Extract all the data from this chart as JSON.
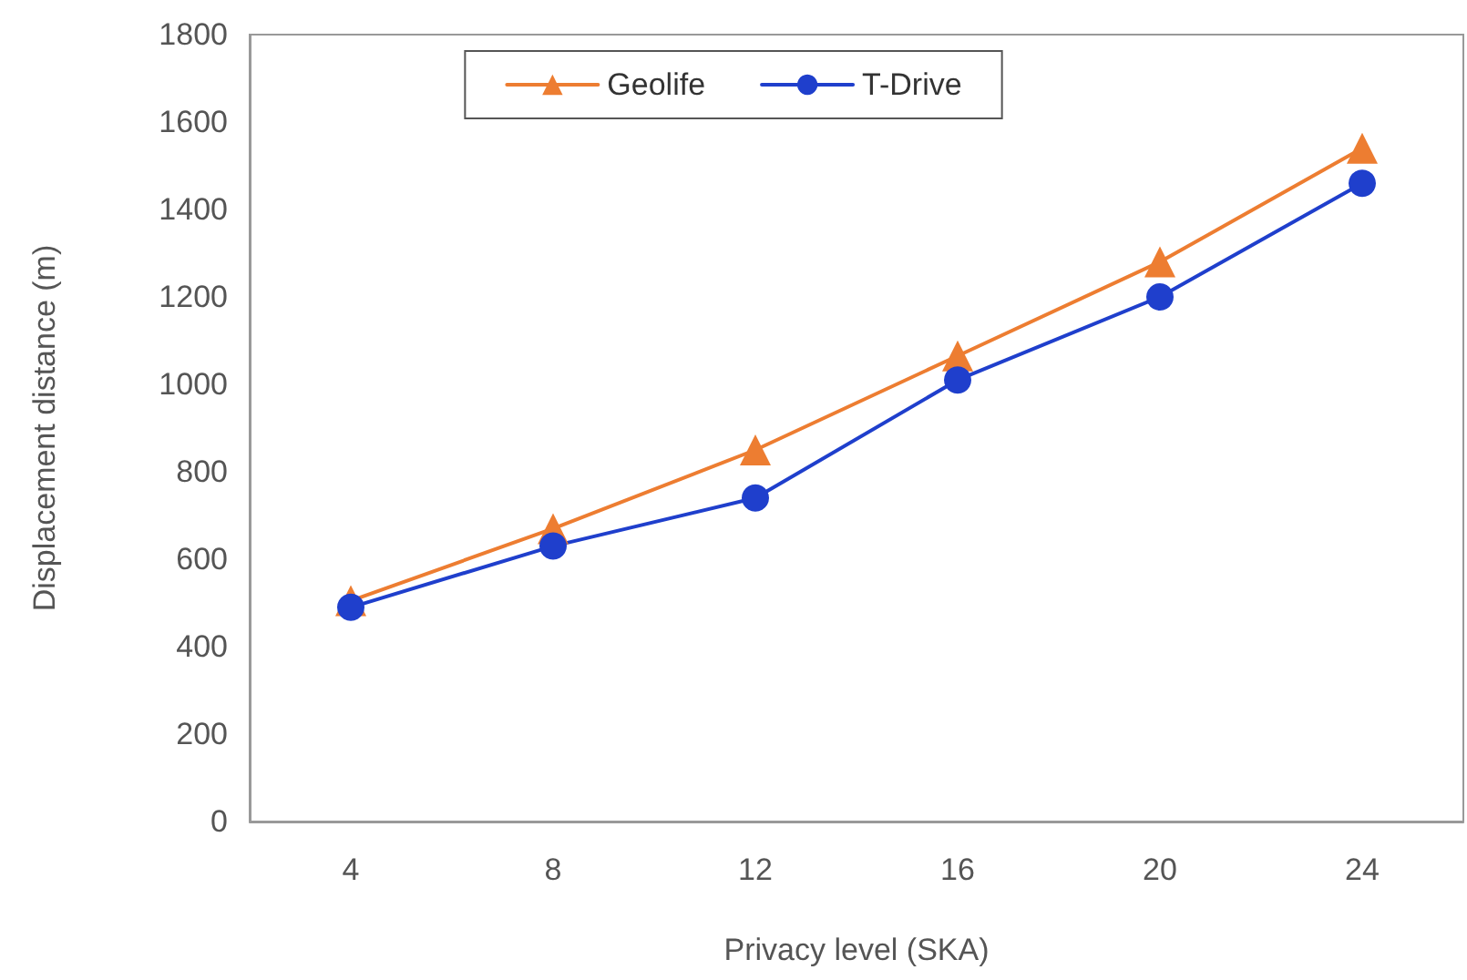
{
  "chart_data": {
    "type": "line",
    "xlabel": "Privacy level (SKA)",
    "ylabel": "Displacement distance (m)",
    "categories": [
      "4",
      "8",
      "12",
      "16",
      "20",
      "24"
    ],
    "series": [
      {
        "name": "Geolife",
        "color": "#ed7d31",
        "marker": "triangle",
        "values": [
          505,
          670,
          850,
          1065,
          1280,
          1540
        ]
      },
      {
        "name": "T-Drive",
        "color": "#1f3fcc",
        "marker": "circle",
        "values": [
          490,
          630,
          740,
          1010,
          1200,
          1460
        ]
      }
    ],
    "ylim": [
      0,
      1800
    ],
    "yticks": [
      0,
      200,
      400,
      600,
      800,
      1000,
      1200,
      1400,
      1600,
      1800
    ],
    "grid": false,
    "legend": "top",
    "line_style": "solid"
  }
}
